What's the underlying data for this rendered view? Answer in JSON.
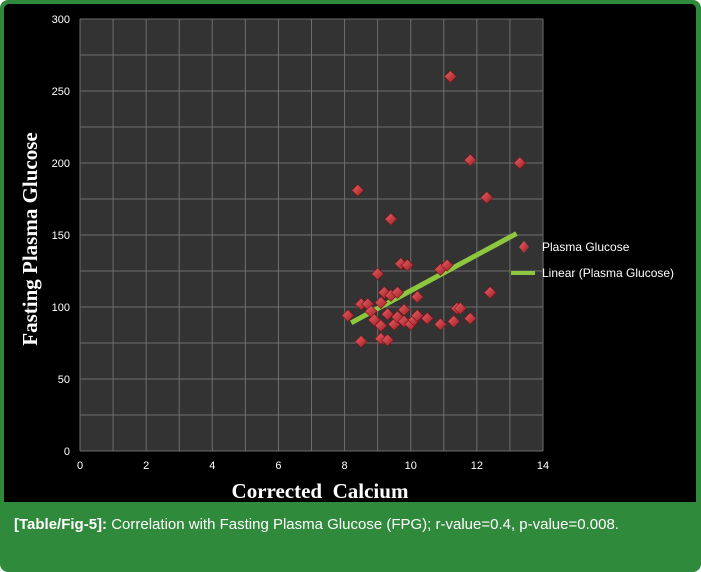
{
  "caption": {
    "label": "[Table/Fig-5]:",
    "text": "Correlation with Fasting Plasma Glucose (FPG); r-value=0.4, p-value=0.008."
  },
  "colors": {
    "frame": "#2f8a3b",
    "plot_background": "#333333",
    "grid": "#6e6e6e",
    "marker": "#c0272d",
    "trendline": "#8dc63f"
  },
  "chart_data": {
    "type": "scatter",
    "xlabel": "Corrected  Calcium",
    "ylabel": "Fasting Plasma Glucose",
    "xlim": [
      0,
      14
    ],
    "ylim": [
      0,
      300
    ],
    "x_ticks": [
      "0",
      "2",
      "4",
      "6",
      "8",
      "10",
      "12",
      "14"
    ],
    "y_ticks": [
      "0",
      "50",
      "100",
      "150",
      "200",
      "250",
      "300"
    ],
    "grid": true,
    "legend_position": "right",
    "series": [
      {
        "name": "Plasma Glucose",
        "marker": "diamond",
        "points": [
          [
            8.1,
            94
          ],
          [
            8.4,
            181
          ],
          [
            8.5,
            102
          ],
          [
            8.5,
            76
          ],
          [
            8.7,
            102
          ],
          [
            8.8,
            97
          ],
          [
            8.9,
            91
          ],
          [
            9.0,
            123
          ],
          [
            9.1,
            78
          ],
          [
            9.1,
            87
          ],
          [
            9.1,
            103
          ],
          [
            9.2,
            110
          ],
          [
            9.3,
            95
          ],
          [
            9.3,
            77
          ],
          [
            9.4,
            161
          ],
          [
            9.4,
            108
          ],
          [
            9.5,
            88
          ],
          [
            9.6,
            110
          ],
          [
            9.6,
            93
          ],
          [
            9.7,
            130
          ],
          [
            9.8,
            98
          ],
          [
            9.8,
            90
          ],
          [
            9.9,
            129
          ],
          [
            10.0,
            88
          ],
          [
            10.1,
            91
          ],
          [
            10.2,
            107
          ],
          [
            10.2,
            94
          ],
          [
            10.5,
            92
          ],
          [
            10.9,
            126
          ],
          [
            10.9,
            88
          ],
          [
            11.1,
            129
          ],
          [
            11.2,
            260
          ],
          [
            11.3,
            90
          ],
          [
            11.4,
            99
          ],
          [
            11.5,
            99
          ],
          [
            11.8,
            202
          ],
          [
            11.8,
            92
          ],
          [
            12.3,
            176
          ],
          [
            12.4,
            110
          ],
          [
            13.3,
            200
          ]
        ]
      },
      {
        "name": "Linear (Plasma Glucose)",
        "type": "trendline",
        "points": [
          [
            8.2,
            89
          ],
          [
            13.2,
            151
          ]
        ]
      }
    ]
  }
}
